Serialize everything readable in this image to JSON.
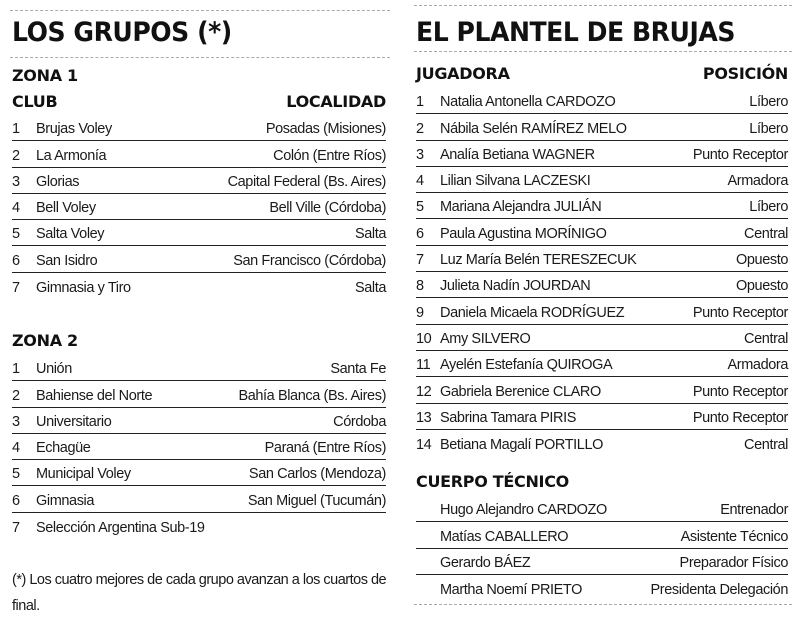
{
  "groups": {
    "title": "LOS GRUPOS (*)",
    "zona1": {
      "label": "ZONA 1",
      "col_club": "CLUB",
      "col_localidad": "LOCALIDAD",
      "rows": [
        {
          "n": "1",
          "club": "Brujas Voley",
          "loc": "Posadas (Misiones)"
        },
        {
          "n": "2",
          "club": "La Armonía",
          "loc": "Colón (Entre Ríos)"
        },
        {
          "n": "3",
          "club": "Glorias",
          "loc": "Capital Federal (Bs. Aires)"
        },
        {
          "n": "4",
          "club": "Bell Voley",
          "loc": "Bell Ville (Córdoba)"
        },
        {
          "n": "5",
          "club": "Salta Voley",
          "loc": "Salta"
        },
        {
          "n": "6",
          "club": "San Isidro",
          "loc": "San Francisco (Córdoba)"
        },
        {
          "n": "7",
          "club": "Gimnasia y Tiro",
          "loc": "Salta"
        }
      ]
    },
    "zona2": {
      "label": "ZONA 2",
      "rows": [
        {
          "n": "1",
          "club": "Unión",
          "loc": "Santa Fe"
        },
        {
          "n": "2",
          "club": "Bahiense del Norte",
          "loc": "Bahía Blanca (Bs. Aires)"
        },
        {
          "n": "3",
          "club": "Universitario",
          "loc": "Córdoba"
        },
        {
          "n": "4",
          "club": "Echagüe",
          "loc": "Paraná (Entre Ríos)"
        },
        {
          "n": "5",
          "club": "Municipal Voley",
          "loc": "San Carlos (Mendoza)"
        },
        {
          "n": "6",
          "club": "Gimnasia",
          "loc": "San Miguel (Tucumán)"
        },
        {
          "n": "7",
          "club": "Selección Argentina Sub-19",
          "loc": ""
        }
      ]
    },
    "footnote": "(*) Los cuatro mejores de cada grupo avanzan a los cuartos de final."
  },
  "roster": {
    "title": "EL PLANTEL DE BRUJAS",
    "col_player": "JUGADORA",
    "col_position": "POSICIÓN",
    "players": [
      {
        "n": "1",
        "name": "Natalia Antonella CARDOZO",
        "pos": "Líbero"
      },
      {
        "n": "2",
        "name": "Nábila Selén RAMÍREZ MELO",
        "pos": "Líbero"
      },
      {
        "n": "3",
        "name": "Analía Betiana WAGNER",
        "pos": "Punto Receptor"
      },
      {
        "n": "4",
        "name": "Lilian Silvana LACZESKI",
        "pos": "Armadora"
      },
      {
        "n": "5",
        "name": "Mariana Alejandra JULIÁN",
        "pos": "Líbero"
      },
      {
        "n": "6",
        "name": "Paula Agustina MORÍNIGO",
        "pos": "Central"
      },
      {
        "n": "7",
        "name": "Luz María Belén TERESZECUK",
        "pos": "Opuesto"
      },
      {
        "n": "8",
        "name": "Julieta Nadín JOURDAN",
        "pos": "Opuesto"
      },
      {
        "n": "9",
        "name": "Daniela Micaela RODRÍGUEZ",
        "pos": "Punto Receptor"
      },
      {
        "n": "10",
        "name": "Amy SILVERO",
        "pos": "Central"
      },
      {
        "n": "11",
        "name": "Ayelén Estefanía QUIROGA",
        "pos": "Armadora"
      },
      {
        "n": "12",
        "name": "Gabriela Berenice CLARO",
        "pos": "Punto Receptor"
      },
      {
        "n": "13",
        "name": "Sabrina Tamara PIRIS",
        "pos": "Punto Receptor"
      },
      {
        "n": "14",
        "name": "Betiana Magalí PORTILLO",
        "pos": "Central"
      }
    ],
    "staff_title": "CUERPO TÉCNICO",
    "staff": [
      {
        "name": "Hugo Alejandro CARDOZO",
        "role": "Entrenador"
      },
      {
        "name": "Matías CABALLERO",
        "role": "Asistente Técnico"
      },
      {
        "name": "Gerardo BÁEZ",
        "role": "Preparador Físico"
      },
      {
        "name": "Martha Noemí PRIETO",
        "role": "Presidenta Delegación"
      }
    ]
  }
}
